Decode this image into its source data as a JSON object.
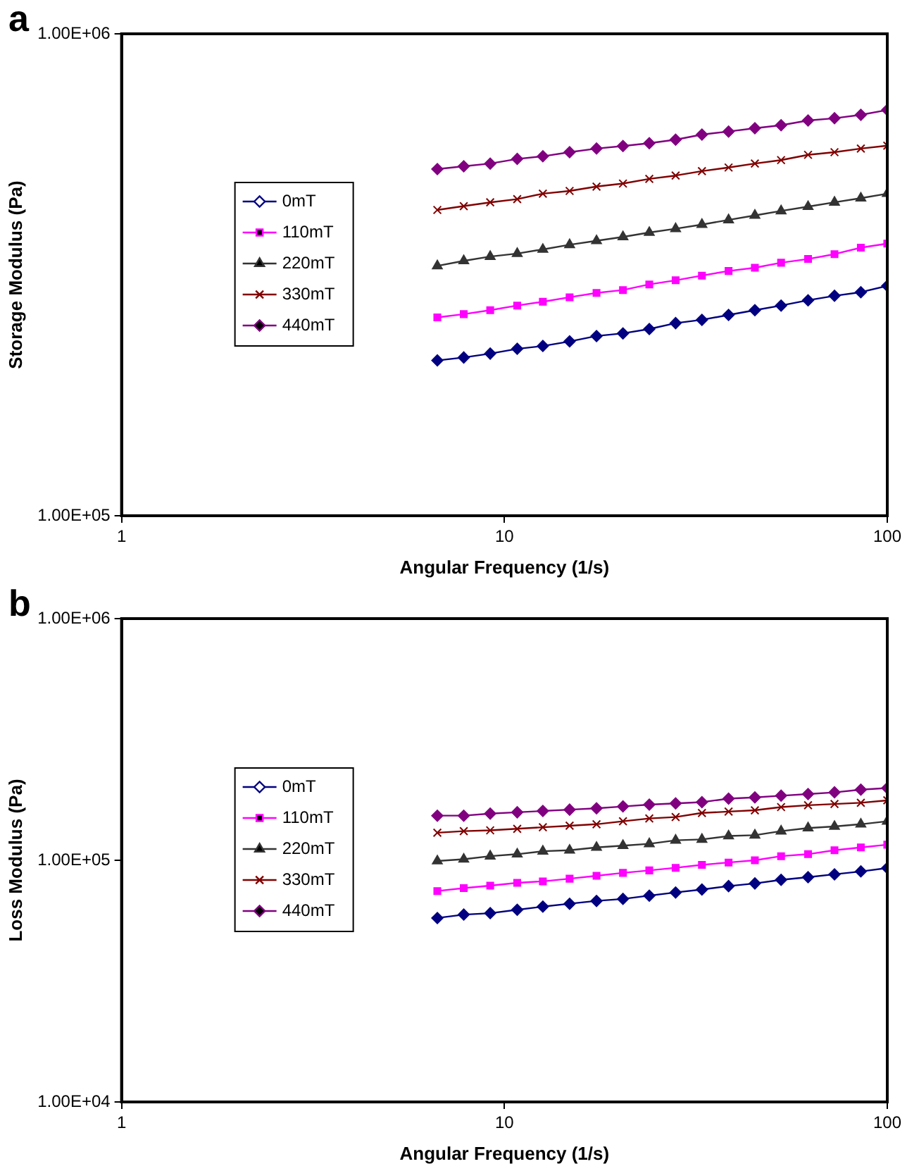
{
  "chart_data": [
    {
      "type": "line",
      "title": "a",
      "xlabel": "Angular Frequency (1/s)",
      "ylabel": "Storage Modulus (Pa)",
      "log": "xy",
      "grid": false,
      "legend": "left",
      "line_style": "solid",
      "x": [
        6.68,
        7.83,
        9.18,
        10.8,
        12.6,
        14.8,
        17.4,
        20.4,
        23.9,
        28.0,
        32.8,
        38.5,
        45.1,
        52.8,
        62.1,
        72.8,
        85.3,
        100
      ],
      "xlim": [
        1,
        100
      ],
      "xticks": [
        1,
        10,
        100
      ],
      "ylim": [
        100000,
        1000000
      ],
      "yticks": [
        {
          "value": 100000,
          "label": "1.00E+05"
        },
        {
          "value": 1000000,
          "label": "1.00E+06"
        }
      ],
      "series": [
        {
          "name": "0mT",
          "color": "#000080",
          "marker": "diamond",
          "values": [
            210000,
            213000,
            217000,
            222000,
            225000,
            230000,
            236000,
            239000,
            244000,
            251000,
            255000,
            261000,
            267000,
            273000,
            280000,
            286000,
            291000,
            300000
          ]
        },
        {
          "name": "110mT",
          "color": "#ff00ff",
          "marker": "square",
          "values": [
            258000,
            262000,
            267000,
            273000,
            278000,
            284000,
            290000,
            294000,
            302000,
            308000,
            315000,
            322000,
            327000,
            335000,
            341000,
            349000,
            360000,
            367000
          ]
        },
        {
          "name": "220mT",
          "color": "#333333",
          "marker": "triangle",
          "values": [
            330000,
            338000,
            345000,
            350000,
            357000,
            365000,
            372000,
            379000,
            387000,
            394000,
            402000,
            411000,
            420000,
            429000,
            438000,
            447000,
            456000,
            466000
          ]
        },
        {
          "name": "330mT",
          "color": "#800000",
          "marker": "cross",
          "values": [
            431000,
            439000,
            447000,
            454000,
            466000,
            472000,
            482000,
            489000,
            500000,
            508000,
            519000,
            528000,
            538000,
            547000,
            561000,
            568000,
            578000,
            586000
          ]
        },
        {
          "name": "440mT",
          "color": "#800080",
          "marker": "diamond",
          "values": [
            524000,
            531000,
            538000,
            550000,
            557000,
            568000,
            578000,
            585000,
            593000,
            603000,
            618000,
            627000,
            637000,
            646000,
            661000,
            668000,
            679000,
            695000
          ]
        }
      ]
    },
    {
      "type": "line",
      "title": "b",
      "xlabel": "Angular Frequency (1/s)",
      "ylabel": "Loss Modulus (Pa)",
      "log": "xy",
      "grid": false,
      "legend": "left",
      "line_style": "solid",
      "x": [
        6.68,
        7.83,
        9.18,
        10.8,
        12.6,
        14.8,
        17.4,
        20.4,
        23.9,
        28.0,
        32.8,
        38.5,
        45.1,
        52.8,
        62.1,
        72.8,
        85.3,
        100
      ],
      "xlim": [
        1,
        100
      ],
      "xticks": [
        1,
        10,
        100
      ],
      "ylim": [
        10000,
        1000000
      ],
      "yticks": [
        {
          "value": 10000,
          "label": "1.00E+04"
        },
        {
          "value": 100000,
          "label": "1.00E+05"
        },
        {
          "value": 1000000,
          "label": "1.00E+06"
        }
      ],
      "series": [
        {
          "name": "0mT",
          "color": "#000080",
          "marker": "diamond",
          "values": [
            57700,
            59600,
            60400,
            62400,
            64300,
            66100,
            67900,
            69200,
            71400,
            73600,
            75700,
            78200,
            80200,
            83000,
            85100,
            87500,
            89900,
            92900
          ]
        },
        {
          "name": "110mT",
          "color": "#ff00ff",
          "marker": "square",
          "values": [
            74600,
            76700,
            78500,
            80700,
            81800,
            83900,
            86300,
            88700,
            90800,
            93100,
            95700,
            97900,
            100000,
            104000,
            106000,
            110000,
            113000,
            116000
          ]
        },
        {
          "name": "220mT",
          "color": "#333333",
          "marker": "triangle",
          "values": [
            99300,
            101000,
            104000,
            106000,
            109000,
            110000,
            113000,
            115000,
            117000,
            121000,
            122000,
            126000,
            127000,
            132000,
            136000,
            138000,
            141000,
            145000
          ]
        },
        {
          "name": "330mT",
          "color": "#800000",
          "marker": "cross",
          "values": [
            130000,
            132000,
            133000,
            135000,
            137000,
            139000,
            141000,
            145000,
            149000,
            151000,
            157000,
            159000,
            161000,
            166000,
            169000,
            171000,
            173000,
            177000
          ]
        },
        {
          "name": "440mT",
          "color": "#800080",
          "marker": "diamond",
          "values": [
            153000,
            153000,
            156000,
            158000,
            160000,
            162000,
            164000,
            167000,
            170000,
            172000,
            174000,
            180000,
            182000,
            185000,
            188000,
            191000,
            196000,
            199000
          ]
        }
      ]
    }
  ]
}
